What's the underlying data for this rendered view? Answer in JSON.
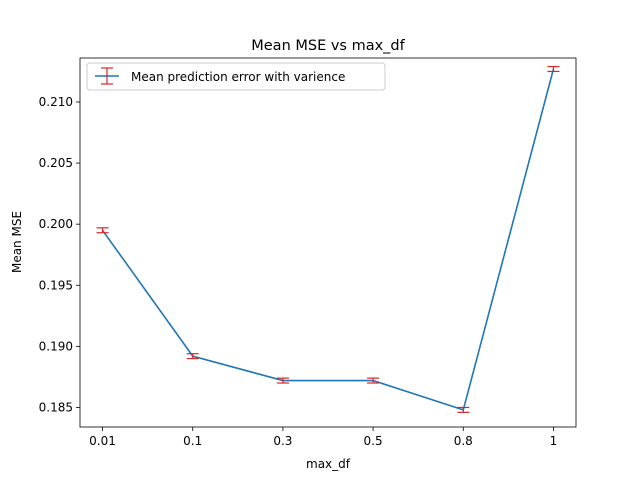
{
  "chart_data": {
    "type": "line",
    "title": "Mean MSE vs max_df",
    "xlabel": "max_df",
    "ylabel": "Mean MSE",
    "categories": [
      "0.01",
      "0.1",
      "0.3",
      "0.5",
      "0.8",
      "1"
    ],
    "series": [
      {
        "name": "Mean prediction error with varience",
        "values": [
          0.1995,
          0.1892,
          0.1872,
          0.1872,
          0.1848,
          0.2127
        ],
        "errors": [
          0.0002,
          0.0002,
          0.0002,
          0.0002,
          0.0002,
          0.0002
        ],
        "color": "#1f77b4",
        "error_color": "#d62728"
      }
    ],
    "ylim": [
      0.1834,
      0.2136
    ],
    "yticks": [
      0.185,
      0.19,
      0.195,
      0.2,
      0.205,
      0.21
    ],
    "ytick_labels": [
      "0.185",
      "0.190",
      "0.195",
      "0.200",
      "0.205",
      "0.210"
    ],
    "grid": false,
    "legend_position": "top-left"
  }
}
